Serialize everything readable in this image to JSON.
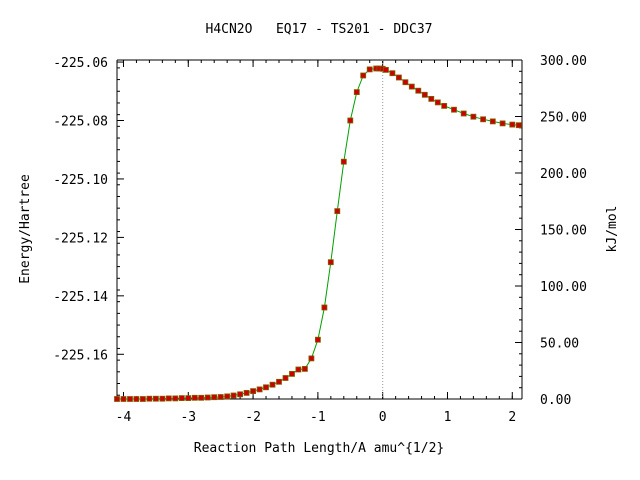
{
  "chart_data": {
    "type": "line",
    "title": "H4CN2O   EQ17 - TS201 - DDC37",
    "xlabel": "Reaction Path Length/A amu^{1/2}",
    "ylabel": "Energy/Hartree",
    "y2label": "kJ/mol",
    "xlim": [
      -4.1,
      2.15
    ],
    "ylim": [
      -225.1753,
      -225.0593
    ],
    "y2lim": [
      0,
      300
    ],
    "x_ticks": [
      -4,
      -3,
      -2,
      -1,
      0,
      1,
      2
    ],
    "x_tick_labels": [
      "-4",
      "-3",
      "-2",
      "-1",
      "0",
      "1",
      "2"
    ],
    "y_ticks": [
      -225.06,
      -225.08,
      -225.1,
      -225.12,
      -225.14,
      -225.16
    ],
    "y_tick_labels": [
      "-225.06",
      "-225.08",
      "-225.10",
      "-225.12",
      "-225.14",
      "-225.16"
    ],
    "y2_ticks": [
      0,
      50,
      100,
      150,
      200,
      250,
      300
    ],
    "y2_tick_labels": [
      "0.00",
      "50.00",
      "100.00",
      "150.00",
      "200.00",
      "250.00",
      "300.00"
    ],
    "ts_marker_x": 0,
    "grid": false,
    "colors": {
      "line": "#00a000",
      "marker_fill": "#cc0000",
      "marker_edge": "#806000",
      "ts_line": "#999999"
    },
    "series": [
      {
        "x": [
          -4.1,
          -4.0,
          -3.9,
          -3.8,
          -3.7,
          -3.6,
          -3.5,
          -3.4,
          -3.3,
          -3.2,
          -3.1,
          -3.0,
          -2.9,
          -2.8,
          -2.7,
          -2.6,
          -2.5,
          -2.4,
          -2.3,
          -2.2,
          -2.1,
          -2.0,
          -1.9,
          -1.8,
          -1.7,
          -1.6,
          -1.5,
          -1.4,
          -1.3,
          -1.2,
          -1.1,
          -1.0,
          -0.9,
          -0.8,
          -0.7,
          -0.6,
          -0.5,
          -0.4,
          -0.3,
          -0.2,
          -0.1,
          -0.05,
          0.0,
          0.05,
          0.15,
          0.25,
          0.35,
          0.45,
          0.55,
          0.65,
          0.75,
          0.85,
          0.95,
          1.1,
          1.25,
          1.4,
          1.55,
          1.7,
          1.85,
          2.0,
          2.1
        ],
        "y": [
          -225.1753,
          -225.1753,
          -225.1753,
          -225.1753,
          -225.1753,
          -225.1752,
          -225.1752,
          -225.1752,
          -225.1751,
          -225.1751,
          -225.175,
          -225.175,
          -225.1749,
          -225.1749,
          -225.1748,
          -225.1747,
          -225.1746,
          -225.1744,
          -225.1741,
          -225.1737,
          -225.1732,
          -225.1726,
          -225.172,
          -225.1713,
          -225.1704,
          -225.1694,
          -225.1681,
          -225.1667,
          -225.1652,
          -225.165,
          -225.1614,
          -225.155,
          -225.144,
          -225.1285,
          -225.111,
          -225.0941,
          -225.08,
          -225.0703,
          -225.0646,
          -225.0625,
          -225.0622,
          -225.0622,
          -225.0623,
          -225.0627,
          -225.0638,
          -225.0653,
          -225.0669,
          -225.0684,
          -225.0698,
          -225.0712,
          -225.0726,
          -225.0738,
          -225.075,
          -225.0763,
          -225.0776,
          -225.0787,
          -225.0796,
          -225.0803,
          -225.081,
          -225.0814,
          -225.0816
        ]
      }
    ]
  }
}
